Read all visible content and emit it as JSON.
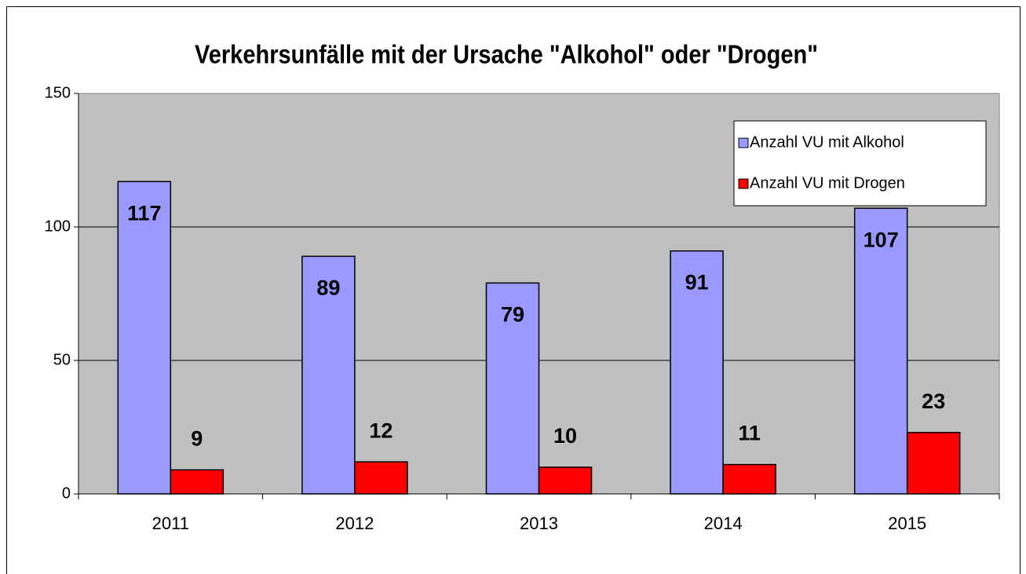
{
  "chart_data": {
    "type": "bar",
    "title": "Verkehrsunfälle mit der Ursache \"Alkohol\" oder \"Drogen\"",
    "categories": [
      "2011",
      "2012",
      "2013",
      "2014",
      "2015"
    ],
    "series": [
      {
        "name": "Anzahl VU mit Alkohol",
        "color": "#9999ff",
        "values": [
          117,
          89,
          79,
          91,
          107
        ]
      },
      {
        "name": "Anzahl VU mit Drogen",
        "color": "#ff0000",
        "values": [
          9,
          12,
          10,
          11,
          23
        ]
      }
    ],
    "ylim": [
      0,
      150
    ],
    "yticks": [
      0,
      50,
      100,
      150
    ],
    "grid": true,
    "legend": "upper right"
  }
}
